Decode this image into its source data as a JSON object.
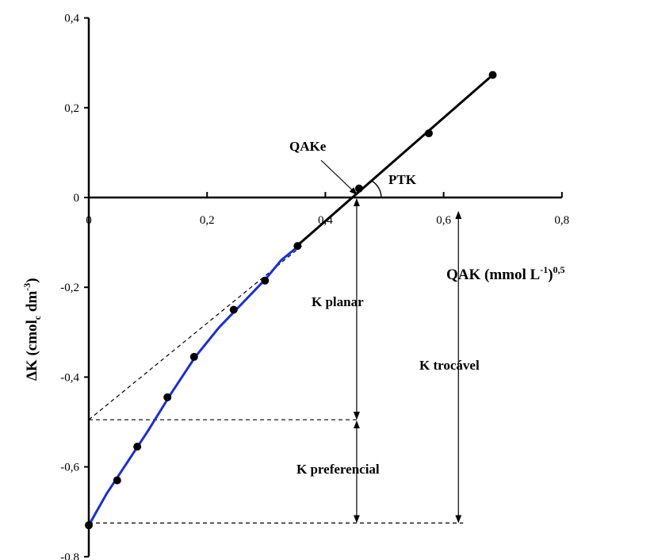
{
  "chart_data": {
    "type": "scatter",
    "x_range": [
      0,
      0.8
    ],
    "y_range": [
      -0.8,
      0.4
    ],
    "x_ticks": [
      "0",
      "0,2",
      "0,4",
      "0,6",
      "0,8"
    ],
    "x_tick_values": [
      0,
      0.2,
      0.4,
      0.6,
      0.8
    ],
    "y_ticks": [
      "0,4",
      "0,2",
      "0",
      "-0,2",
      "-0,4",
      "-0,6",
      "-0,8"
    ],
    "y_tick_values": [
      0.4,
      0.2,
      0,
      -0.2,
      -0.4,
      -0.6,
      -0.8
    ],
    "xlabel": {
      "main": "QAK (mmol L",
      "sup1": "-1",
      "close": ")",
      "sup2": "0,5"
    },
    "ylabel": {
      "main": "ΔK  (cmol",
      "sub": "c",
      "unit": " dm",
      "sup": "-3",
      "close": ")"
    },
    "points": [
      {
        "x": 0.0,
        "y": -0.73
      },
      {
        "x": 0.048,
        "y": -0.63
      },
      {
        "x": 0.082,
        "y": -0.555
      },
      {
        "x": 0.133,
        "y": -0.445
      },
      {
        "x": 0.178,
        "y": -0.355
      },
      {
        "x": 0.245,
        "y": -0.25
      },
      {
        "x": 0.298,
        "y": -0.185
      },
      {
        "x": 0.353,
        "y": -0.108
      },
      {
        "x": 0.457,
        "y": 0.02
      },
      {
        "x": 0.575,
        "y": 0.143
      },
      {
        "x": 0.683,
        "y": 0.273
      }
    ],
    "linear_fit": {
      "from": [
        0.35,
        -0.11
      ],
      "to": [
        0.683,
        0.273
      ]
    },
    "curve_color": "#1a2fd6",
    "curve": [
      {
        "x": 0.0,
        "y": -0.73
      },
      {
        "x": 0.03,
        "y": -0.66
      },
      {
        "x": 0.06,
        "y": -0.6
      },
      {
        "x": 0.1,
        "y": -0.52
      },
      {
        "x": 0.14,
        "y": -0.435
      },
      {
        "x": 0.18,
        "y": -0.355
      },
      {
        "x": 0.22,
        "y": -0.29
      },
      {
        "x": 0.26,
        "y": -0.235
      },
      {
        "x": 0.3,
        "y": -0.18
      },
      {
        "x": 0.325,
        "y": -0.14
      },
      {
        "x": 0.355,
        "y": -0.108
      }
    ],
    "extrapolation": {
      "from": [
        0.0,
        -0.495
      ],
      "to": [
        0.36,
        -0.108
      ]
    },
    "qake": 0.457,
    "k_planar_top": 0.0,
    "k_planar_bottom": -0.495,
    "k_preferencial_bottom": -0.725,
    "k_trocavel_x": 0.625,
    "k_trocavel_top": 0.0,
    "k_trocavel_bottom": -0.725,
    "annotations": {
      "qake": "QAKe",
      "ptk": "PTK",
      "k_planar": "K planar",
      "k_preferencial": "K preferencial",
      "k_trocavel": "K trocável"
    }
  }
}
